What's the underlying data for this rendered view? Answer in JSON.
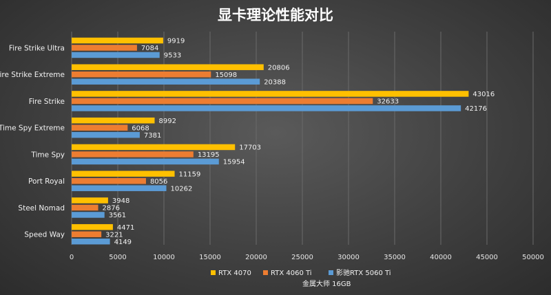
{
  "chart_data": {
    "type": "bar",
    "orientation": "horizontal",
    "title": "显卡理论性能对比",
    "categories": [
      "Fire Strike Ultra",
      "Fire Strike Extreme",
      "Fire Strike",
      "Time Spy Extreme",
      "Time Spy",
      "Port Royal",
      "Steel Nomad",
      "Speed Way"
    ],
    "series": [
      {
        "name": "RTX 4070",
        "color": "#ffc000",
        "values": [
          9919,
          20806,
          43016,
          8992,
          17703,
          11159,
          3948,
          4471
        ]
      },
      {
        "name": "RTX 4060 Ti",
        "color": "#ed7d31",
        "values": [
          7084,
          15098,
          32633,
          6068,
          13195,
          8056,
          2876,
          3221
        ]
      },
      {
        "name": "影驰RTX 5060 Ti",
        "name_line2": "金属大师 16GB",
        "color": "#5b9bd5",
        "values": [
          9533,
          20388,
          42176,
          7381,
          15954,
          10262,
          3561,
          4149
        ]
      }
    ],
    "xlim": [
      0,
      50000
    ],
    "xticks": [
      0,
      5000,
      10000,
      15000,
      20000,
      25000,
      30000,
      35000,
      40000,
      45000,
      50000
    ],
    "grid": true,
    "legend": "bottom",
    "data_labels": true
  }
}
